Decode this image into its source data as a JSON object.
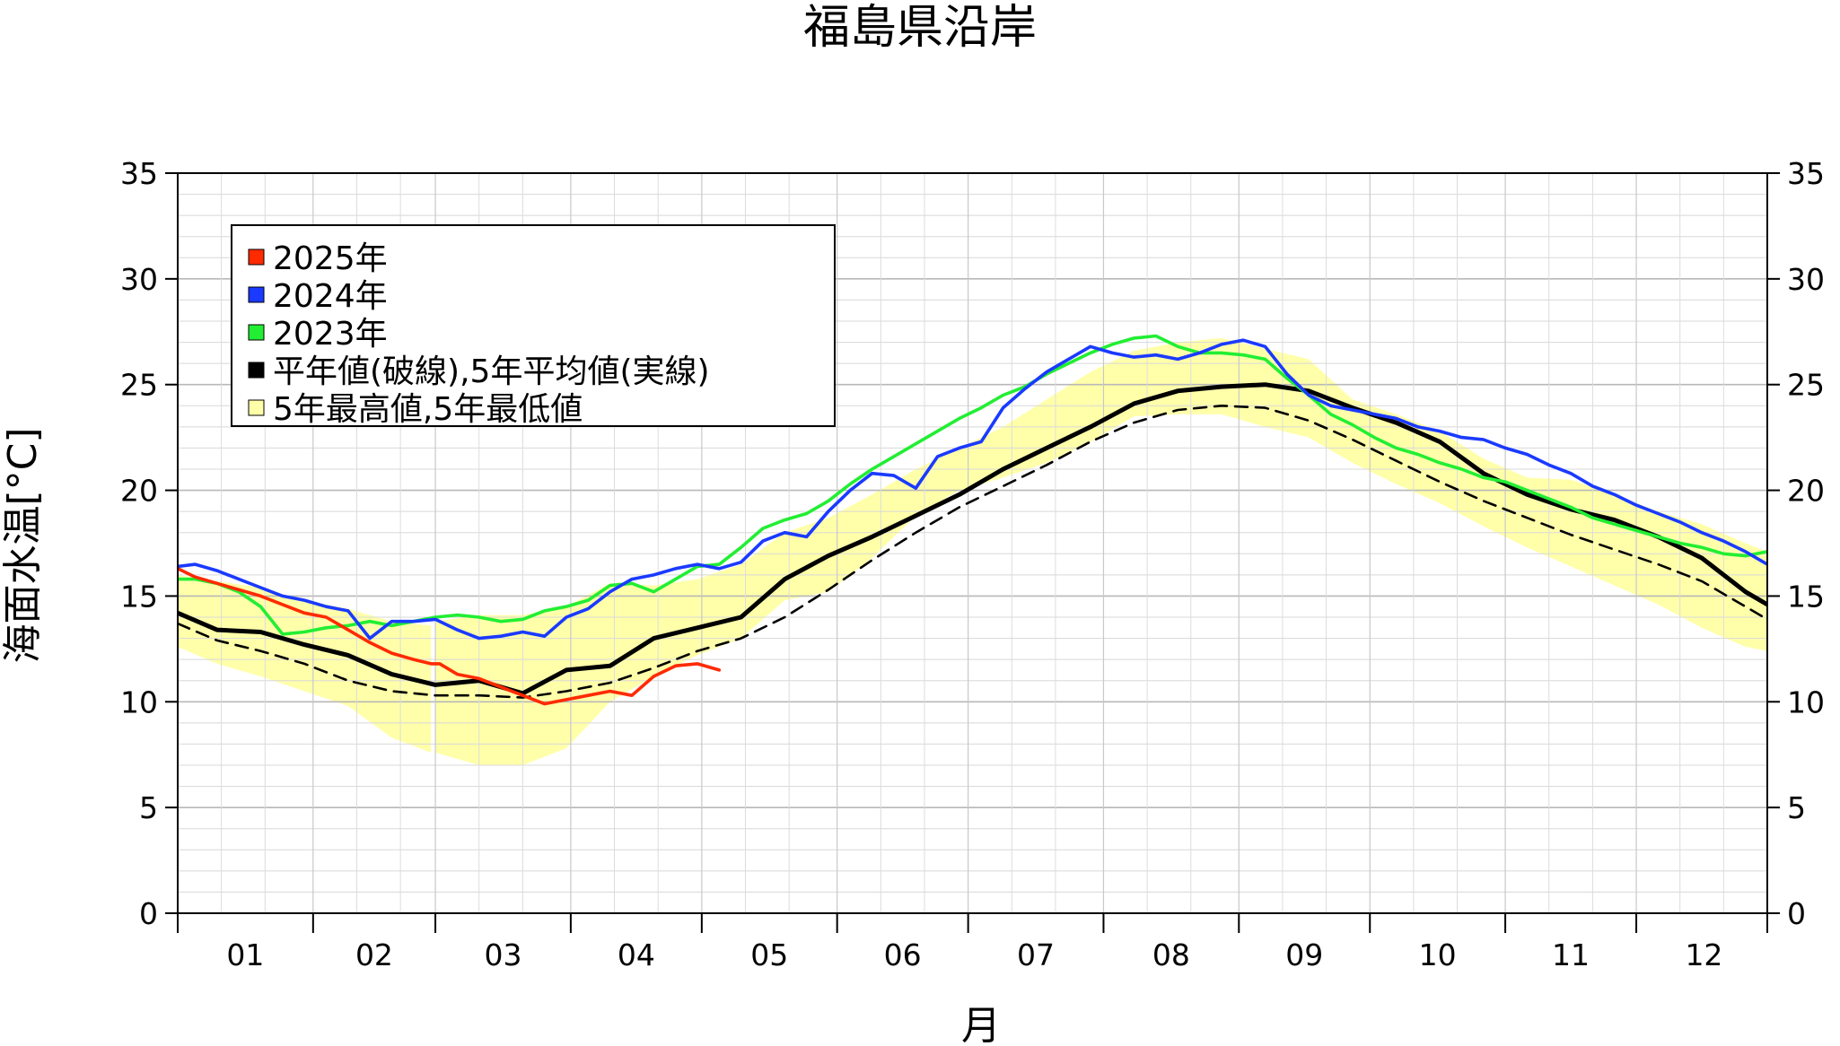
{
  "chart_data": {
    "type": "line",
    "title": "福島県沿岸",
    "xlabel": "月",
    "ylabel": "海面水温[°C]",
    "x_unit": "day-of-year",
    "xlim": [
      1,
      365
    ],
    "ylim": [
      0,
      35
    ],
    "yticks": [
      0,
      5,
      10,
      15,
      20,
      25,
      30,
      35
    ],
    "month_labels": [
      "01",
      "02",
      "03",
      "04",
      "05",
      "06",
      "07",
      "08",
      "09",
      "10",
      "11",
      "12"
    ],
    "grid": true,
    "legend_position": "top-left",
    "legend": [
      {
        "label": "2025年",
        "color": "#ff2a00"
      },
      {
        "label": "2024年",
        "color": "#1a3aff"
      },
      {
        "label": "2023年",
        "color": "#22ee33"
      },
      {
        "label": "平年値(破線),5年平均値(実線)",
        "color": "#000000"
      },
      {
        "label": "5年最高値,5年最低値",
        "color": "#ffffaa"
      }
    ],
    "series": [
      {
        "name": "2025年",
        "color": "#ff2a00",
        "x": [
          1,
          5,
          10,
          15,
          20,
          25,
          30,
          35,
          40,
          45,
          50,
          55,
          59,
          61,
          65,
          70,
          75,
          80,
          85,
          90,
          95,
          100,
          105,
          110,
          115,
          120,
          125
        ],
        "y": [
          16.3,
          15.9,
          15.6,
          15.3,
          15.0,
          14.6,
          14.2,
          14.0,
          13.4,
          12.8,
          12.3,
          12.0,
          11.8,
          11.8,
          11.3,
          11.1,
          10.7,
          10.3,
          9.9,
          10.1,
          10.3,
          10.5,
          10.3,
          11.2,
          11.7,
          11.8,
          11.5
        ]
      },
      {
        "name": "2024年",
        "color": "#1a3aff",
        "x": [
          1,
          5,
          10,
          15,
          20,
          25,
          30,
          35,
          40,
          45,
          50,
          55,
          60,
          65,
          70,
          75,
          80,
          85,
          90,
          95,
          100,
          105,
          110,
          115,
          120,
          125,
          130,
          135,
          140,
          145,
          150,
          155,
          160,
          165,
          170,
          175,
          180,
          185,
          190,
          195,
          200,
          205,
          210,
          215,
          220,
          225,
          230,
          235,
          240,
          245,
          250,
          255,
          260,
          265,
          270,
          275,
          280,
          285,
          290,
          295,
          300,
          305,
          310,
          315,
          320,
          325,
          330,
          335,
          340,
          345,
          350,
          355,
          360,
          365
        ],
        "y": [
          16.4,
          16.5,
          16.2,
          15.8,
          15.4,
          15.0,
          14.8,
          14.5,
          14.3,
          13.0,
          13.8,
          13.8,
          13.9,
          13.4,
          13.0,
          13.1,
          13.3,
          13.1,
          14.0,
          14.4,
          15.2,
          15.8,
          16.0,
          16.3,
          16.5,
          16.3,
          16.6,
          17.6,
          18.0,
          17.8,
          19.0,
          20.0,
          20.8,
          20.7,
          20.1,
          21.6,
          22.0,
          22.3,
          23.9,
          24.8,
          25.6,
          26.2,
          26.8,
          26.5,
          26.3,
          26.4,
          26.2,
          26.5,
          26.9,
          27.1,
          26.8,
          25.5,
          24.5,
          24.0,
          23.8,
          23.6,
          23.4,
          23.0,
          22.8,
          22.5,
          22.4,
          22.0,
          21.7,
          21.2,
          20.8,
          20.2,
          19.8,
          19.3,
          18.9,
          18.5,
          18.0,
          17.6,
          17.1,
          16.5
        ]
      },
      {
        "name": "2023年",
        "color": "#22ee33",
        "x": [
          1,
          5,
          10,
          15,
          20,
          25,
          30,
          35,
          40,
          45,
          50,
          55,
          60,
          65,
          70,
          75,
          80,
          85,
          90,
          95,
          100,
          105,
          110,
          115,
          120,
          125,
          130,
          135,
          140,
          145,
          150,
          155,
          160,
          165,
          170,
          175,
          180,
          185,
          190,
          195,
          200,
          205,
          210,
          215,
          220,
          225,
          230,
          235,
          240,
          245,
          250,
          255,
          260,
          265,
          270,
          275,
          280,
          285,
          290,
          295,
          300,
          305,
          310,
          315,
          320,
          325,
          330,
          335,
          340,
          345,
          350,
          355,
          360,
          365
        ],
        "y": [
          15.8,
          15.8,
          15.6,
          15.2,
          14.5,
          13.2,
          13.3,
          13.5,
          13.6,
          13.8,
          13.6,
          13.8,
          14.0,
          14.1,
          14.0,
          13.8,
          13.9,
          14.3,
          14.5,
          14.8,
          15.5,
          15.6,
          15.2,
          15.8,
          16.4,
          16.5,
          17.3,
          18.2,
          18.6,
          18.9,
          19.5,
          20.3,
          21.0,
          21.6,
          22.2,
          22.8,
          23.4,
          23.9,
          24.5,
          24.9,
          25.5,
          26.0,
          26.5,
          26.9,
          27.2,
          27.3,
          26.8,
          26.5,
          26.5,
          26.4,
          26.2,
          25.3,
          24.5,
          23.6,
          23.1,
          22.5,
          22.0,
          21.7,
          21.3,
          21.0,
          20.6,
          20.4,
          20.0,
          19.6,
          19.2,
          18.7,
          18.4,
          18.1,
          17.8,
          17.5,
          17.3,
          17.0,
          16.9,
          17.1
        ]
      },
      {
        "name": "5年平均値",
        "color": "#000000",
        "style": "solid",
        "x": [
          1,
          10,
          20,
          30,
          40,
          50,
          60,
          70,
          80,
          90,
          100,
          110,
          120,
          130,
          140,
          150,
          160,
          170,
          180,
          190,
          200,
          210,
          220,
          230,
          240,
          250,
          260,
          270,
          280,
          290,
          300,
          310,
          320,
          330,
          340,
          350,
          360,
          365
        ],
        "y": [
          14.2,
          13.4,
          13.3,
          12.7,
          12.2,
          11.3,
          10.8,
          11.0,
          10.4,
          11.5,
          11.7,
          13.0,
          13.5,
          14.0,
          15.8,
          16.9,
          17.8,
          18.8,
          19.8,
          21.0,
          22.0,
          23.0,
          24.1,
          24.7,
          24.9,
          25.0,
          24.7,
          23.9,
          23.2,
          22.3,
          20.8,
          19.8,
          19.1,
          18.6,
          17.8,
          16.8,
          15.2,
          14.6
        ]
      },
      {
        "name": "平年値",
        "color": "#000000",
        "style": "dashed",
        "x": [
          1,
          10,
          20,
          30,
          40,
          50,
          60,
          70,
          80,
          90,
          100,
          110,
          120,
          130,
          140,
          150,
          160,
          170,
          180,
          190,
          200,
          210,
          220,
          230,
          240,
          250,
          260,
          270,
          280,
          290,
          300,
          310,
          320,
          330,
          340,
          350,
          360,
          365
        ],
        "y": [
          13.7,
          12.9,
          12.4,
          11.8,
          11.0,
          10.5,
          10.3,
          10.3,
          10.2,
          10.5,
          10.9,
          11.6,
          12.4,
          13.0,
          14.0,
          15.3,
          16.7,
          18.0,
          19.2,
          20.2,
          21.2,
          22.3,
          23.2,
          23.8,
          24.0,
          23.9,
          23.3,
          22.4,
          21.4,
          20.4,
          19.5,
          18.7,
          17.9,
          17.2,
          16.5,
          15.7,
          14.5,
          13.9
        ]
      }
    ],
    "band": {
      "name": "5年最高値,5年最低値",
      "color": "#ffffaa",
      "gap_at": 59.5,
      "x": [
        1,
        10,
        20,
        30,
        40,
        50,
        59,
        60,
        70,
        80,
        90,
        100,
        110,
        120,
        130,
        140,
        150,
        160,
        170,
        180,
        190,
        200,
        210,
        220,
        230,
        240,
        250,
        260,
        270,
        280,
        290,
        300,
        310,
        320,
        330,
        340,
        350,
        360,
        365
      ],
      "upper": [
        16.0,
        15.7,
        15.4,
        14.8,
        14.4,
        13.8,
        13.6,
        13.8,
        14.1,
        14.1,
        14.5,
        15.6,
        15.5,
        15.8,
        16.5,
        18.0,
        18.7,
        19.8,
        21.0,
        22.0,
        23.0,
        24.3,
        25.6,
        26.6,
        27.0,
        27.2,
        26.7,
        26.2,
        24.3,
        23.6,
        22.8,
        21.5,
        20.6,
        20.5,
        19.8,
        19.0,
        18.4,
        17.5,
        17.1
      ],
      "lower": [
        12.6,
        11.8,
        11.2,
        10.5,
        9.8,
        8.3,
        7.6,
        7.6,
        7.0,
        7.0,
        7.8,
        10.0,
        11.2,
        12.2,
        13.0,
        14.8,
        15.2,
        16.8,
        18.8,
        20.0,
        20.6,
        21.3,
        22.3,
        23.5,
        23.6,
        23.6,
        23.0,
        22.5,
        21.3,
        20.3,
        19.4,
        18.3,
        17.3,
        16.4,
        15.5,
        14.6,
        13.5,
        12.6,
        12.4
      ]
    }
  }
}
